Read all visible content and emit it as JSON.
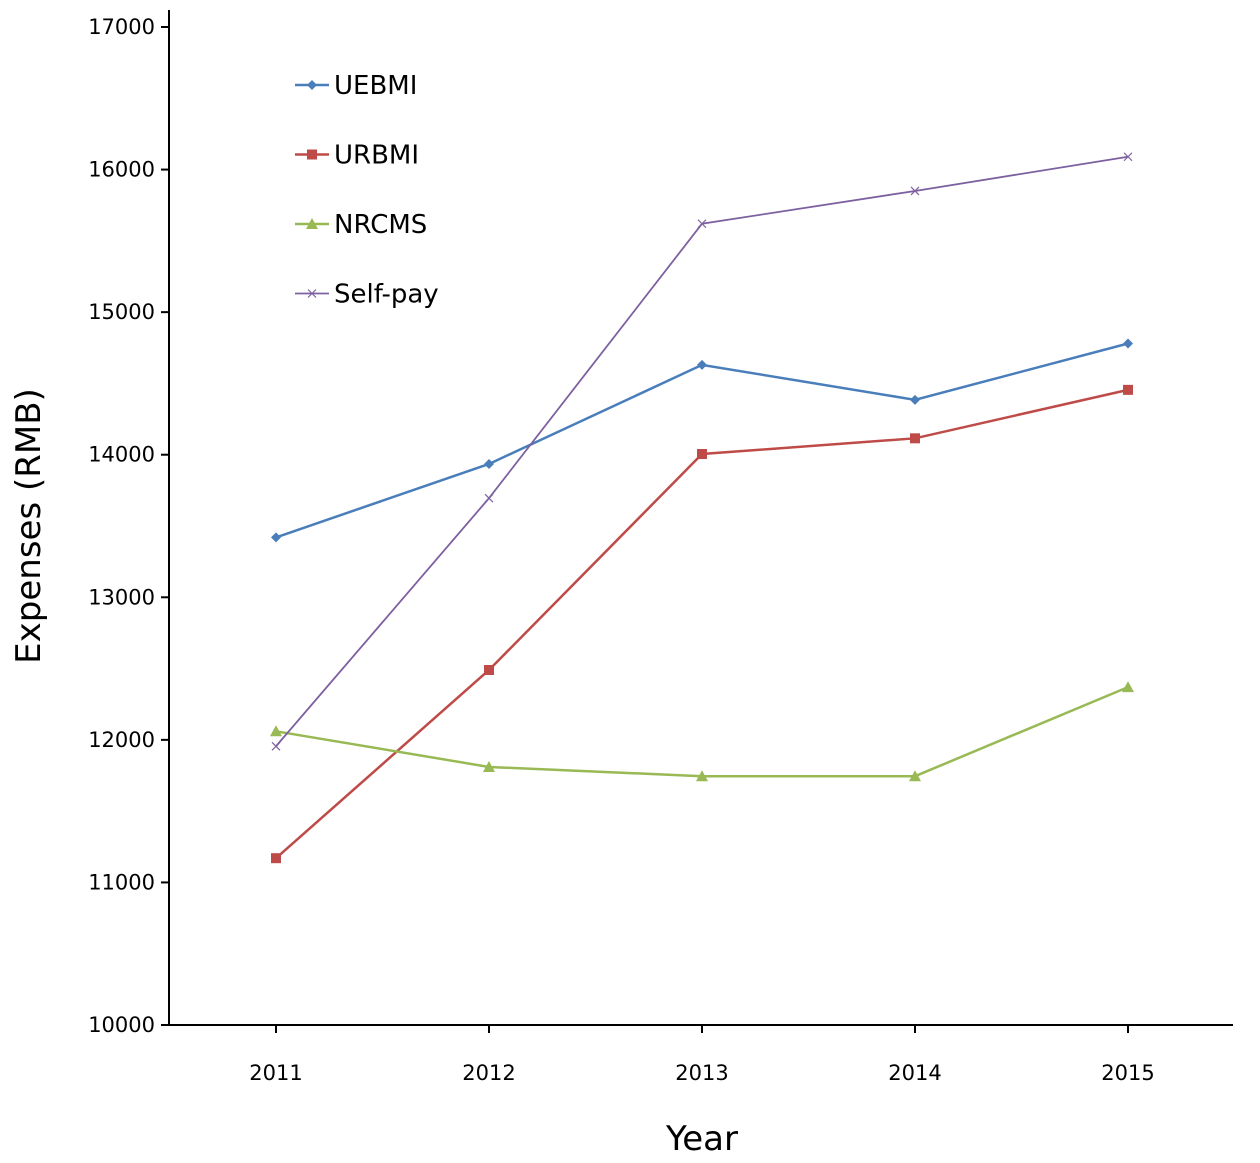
{
  "chart_data": {
    "type": "line",
    "title": "",
    "xlabel": "Year",
    "ylabel": "Expenses (RMB)",
    "categories": [
      "2011",
      "2012",
      "2013",
      "2014",
      "2015"
    ],
    "ylim": [
      10000,
      17000
    ],
    "yticks": [
      10000,
      11000,
      12000,
      13000,
      14000,
      15000,
      16000,
      17000
    ],
    "grid": false,
    "legend_position": "top-left",
    "series": [
      {
        "name": "UEBMI",
        "color": "#4a7ebb",
        "marker": "diamond",
        "values": [
          13420,
          13935,
          14630,
          14385,
          14780
        ]
      },
      {
        "name": "URBMI",
        "color": "#be4b48",
        "marker": "square",
        "values": [
          11170,
          12490,
          14005,
          14115,
          14455
        ]
      },
      {
        "name": "NRCMS",
        "color": "#98b954",
        "marker": "triangle",
        "values": [
          12060,
          11810,
          11745,
          11745,
          12370
        ]
      },
      {
        "name": "Self-pay",
        "color": "#7d60a0",
        "marker": "x",
        "values": [
          11955,
          13695,
          15620,
          15850,
          16090
        ]
      }
    ]
  }
}
